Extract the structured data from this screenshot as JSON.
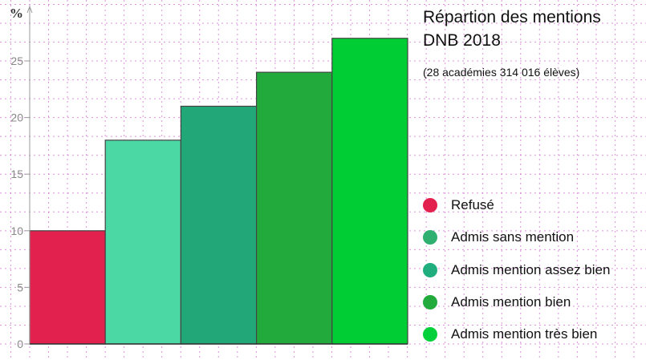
{
  "chart_data": {
    "type": "bar",
    "title_lines": [
      "Répartion des mentions",
      "DNB 2018"
    ],
    "subtitle": "(28 académies 314 016 élèves)",
    "ylabel": "%",
    "xlabel": "",
    "ylim": [
      0,
      28.5
    ],
    "yticks": [
      0,
      5,
      10,
      15,
      20,
      25
    ],
    "ytick_labels": [
      "0",
      "5",
      "10",
      "15",
      "20",
      "25"
    ],
    "grid": true,
    "legend_position": "right",
    "categories": [
      "Refusé",
      "Admis sans mention",
      "Admis mention assez bien",
      "Admis mention bien",
      "Admis mention très bien"
    ],
    "values": [
      10,
      18,
      21,
      24,
      27
    ],
    "bar_colors": [
      "#e2214f",
      "#4cd8a4",
      "#22a878",
      "#22aa3c",
      "#00cc33"
    ],
    "legend_colors": [
      "#e2214f",
      "#2fb071",
      "#20ae7f",
      "#22aa3c",
      "#00d13a"
    ]
  }
}
